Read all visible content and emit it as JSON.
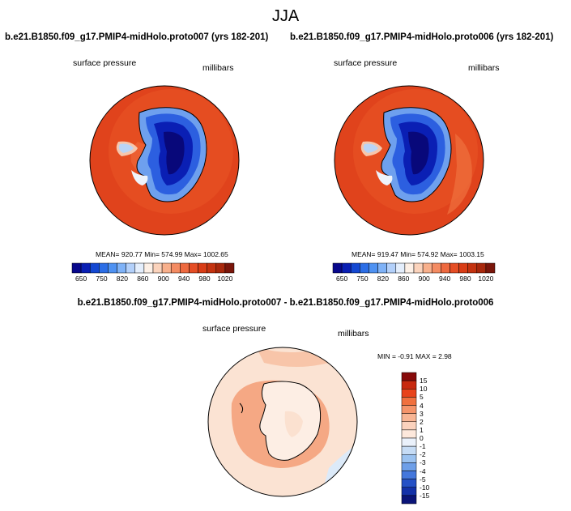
{
  "season": "JJA",
  "panels": [
    {
      "case": "b.e21.B1850.f09_g17.PMIP4-midHolo.proto007 (yrs 182-201)",
      "variable": "surface pressure",
      "units": "millibars",
      "stats": "MEAN= 920.77  Min= 574.99  Max= 1002.65"
    },
    {
      "case": "b.e21.B1850.f09_g17.PMIP4-midHolo.proto006 (yrs 182-201)",
      "variable": "surface pressure",
      "units": "millibars",
      "stats": "MEAN= 919.47  Min= 574.92  Max= 1003.15"
    }
  ],
  "abs_colorbar": {
    "colors": [
      "#08088c",
      "#0a1fb4",
      "#1448d2",
      "#2c6ee6",
      "#4f92f2",
      "#7fb2f7",
      "#b3d0fa",
      "#e4eefc",
      "#fdf0e6",
      "#fbd3bc",
      "#f8b08c",
      "#f48c63",
      "#ee6a40",
      "#e54e25",
      "#d93d16",
      "#c43310",
      "#a8280c",
      "#7a160a"
    ],
    "tick_labels": [
      "650",
      "750",
      "820",
      "860",
      "900",
      "940",
      "980",
      "1020"
    ]
  },
  "diff_panel": {
    "title": "b.e21.B1850.f09_g17.PMIP4-midHolo.proto007 - b.e21.B1850.f09_g17.PMIP4-midHolo.proto006",
    "variable": "surface pressure",
    "units": "millibars",
    "stats": "MIN =  -0.91 MAX =   2.98"
  },
  "diff_colorbar": {
    "colors": [
      "#870a0a",
      "#c8290f",
      "#e8431a",
      "#f0703e",
      "#f5946a",
      "#f8b594",
      "#fbd2bd",
      "#fde8dc",
      "#eaf1fb",
      "#c6dcf5",
      "#9bc2f0",
      "#6e9fe8",
      "#4477dc",
      "#2551c6",
      "#1331a8",
      "#0a1478"
    ],
    "tick_labels": [
      "15",
      "10",
      "5",
      "4",
      "3",
      "2",
      "1",
      "0",
      "-1",
      "-2",
      "-3",
      "-4",
      "-5",
      "-10",
      "-15"
    ]
  },
  "colors": {
    "ocean_abs": "#e0431c",
    "ocean_abs_inner": "#ef6334",
    "ice_deep": "#08087a",
    "diff_background": "#fbe3d3",
    "diff_positive": "#f5a884",
    "diff_negative": "#dceaf9"
  }
}
